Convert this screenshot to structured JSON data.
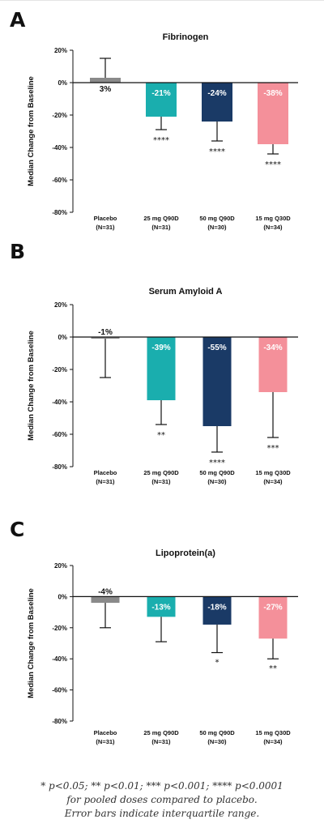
{
  "panels": [
    {
      "letter": "A"
    },
    {
      "letter": "B"
    },
    {
      "letter": "C"
    }
  ],
  "categories": [
    [
      "Placebo",
      "(N=31)"
    ],
    [
      "25 mg Q90D",
      "(N=31)"
    ],
    [
      "50 mg Q90D",
      "(N=30)"
    ],
    [
      "15 mg Q30D",
      "(N=34)"
    ]
  ],
  "colors": [
    "#8a8a8a",
    "#1aaeae",
    "#1a3a66",
    "#f4909a"
  ],
  "ylabel": "Median Change from Baseline",
  "chart_data": [
    {
      "type": "bar",
      "title": "Fibrinogen",
      "ylabel": "Median Change from Baseline",
      "ylim": [
        -80,
        20
      ],
      "yticks": [
        "20%",
        "0%",
        "-20%",
        "-40%",
        "-60%",
        "-80%"
      ],
      "categories": [
        "Placebo (N=31)",
        "25 mg Q90D (N=31)",
        "50 mg Q90D (N=30)",
        "15 mg Q30D (N=34)"
      ],
      "values": [
        3,
        -21,
        -24,
        -38
      ],
      "labels": [
        "3%",
        "-21%",
        "-24%",
        "-38%"
      ],
      "error_ends": [
        15,
        -29,
        -36,
        -44
      ],
      "significance": [
        "",
        "****",
        "****",
        "****"
      ]
    },
    {
      "type": "bar",
      "title": "Serum Amyloid A",
      "ylabel": "Median Change from Baseline",
      "ylim": [
        -80,
        20
      ],
      "yticks": [
        "20%",
        "0%",
        "-20%",
        "-40%",
        "-60%",
        "-80%"
      ],
      "categories": [
        "Placebo (N=31)",
        "25 mg Q90D (N=31)",
        "50 mg Q90D (N=30)",
        "15 mg Q30D (N=34)"
      ],
      "values": [
        -1,
        -39,
        -55,
        -34
      ],
      "labels": [
        "-1%",
        "-39%",
        "-55%",
        "-34%"
      ],
      "error_ends": [
        -25,
        -54,
        -71,
        -62
      ],
      "significance": [
        "",
        "**",
        "****",
        "***"
      ]
    },
    {
      "type": "bar",
      "title": "Lipoprotein(a)",
      "ylabel": "Median Change from Baseline",
      "ylim": [
        -80,
        20
      ],
      "yticks": [
        "20%",
        "0%",
        "-20%",
        "-40%",
        "-60%",
        "-80%"
      ],
      "categories": [
        "Placebo (N=31)",
        "25 mg Q90D (N=31)",
        "50 mg Q90D (N=30)",
        "15 mg Q30D (N=34)"
      ],
      "values": [
        -4,
        -13,
        -18,
        -27
      ],
      "labels": [
        "-4%",
        "-13%",
        "-18%",
        "-27%"
      ],
      "error_ends": [
        -20,
        -29,
        -36,
        -40
      ],
      "significance": [
        "",
        "",
        "*",
        "**"
      ]
    }
  ],
  "footnote": {
    "line1": "* p<0.05; ** p<0.01; *** p<0.001; **** p<0.0001",
    "line2": "for pooled doses compared to placebo.",
    "line3": "Error bars indicate interquartile range."
  }
}
